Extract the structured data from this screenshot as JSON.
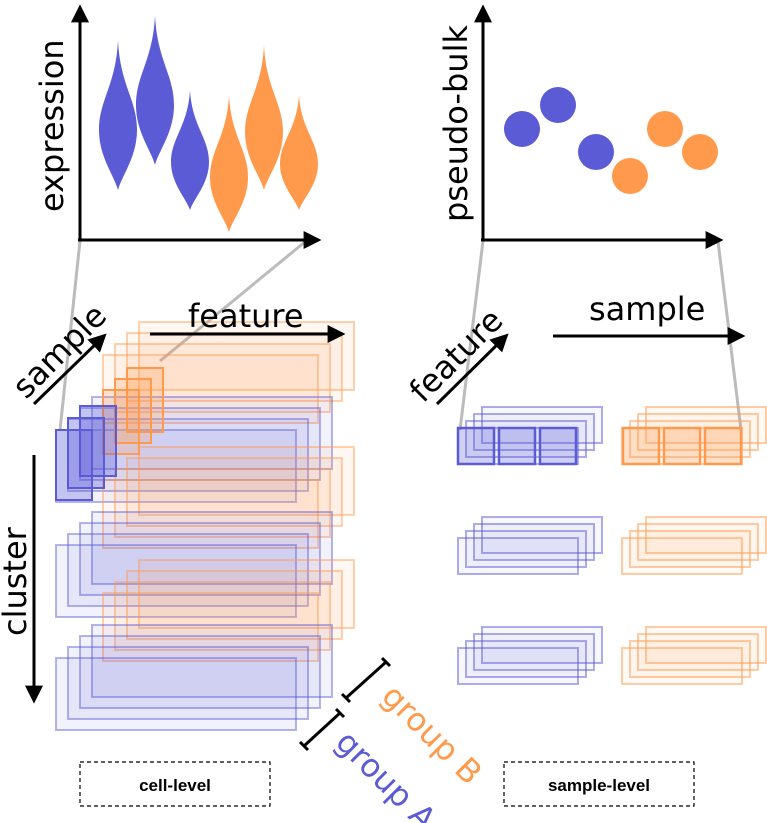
{
  "labels": {
    "expression": "expression",
    "pseudo_bulk": "pseudo-bulk",
    "sample_left": "sample",
    "feature_left": "feature",
    "feature_right": "feature",
    "sample_right": "sample",
    "cluster": "cluster",
    "group_a": "group A",
    "group_b": "group B",
    "cell_level": "cell-level",
    "sample_level": "sample-level"
  },
  "colors": {
    "group_a": "#5b5bd6",
    "group_b": "#ff9a4d",
    "group_a_light": "#b3b3ee",
    "group_b_light": "#ffcfa8",
    "axis": "#000000",
    "connector": "#bbbbbb"
  },
  "violins": [
    {
      "group": "A"
    },
    {
      "group": "A"
    },
    {
      "group": "A"
    },
    {
      "group": "B"
    },
    {
      "group": "B"
    },
    {
      "group": "B"
    }
  ],
  "dots": [
    {
      "group": "A"
    },
    {
      "group": "A"
    },
    {
      "group": "A"
    },
    {
      "group": "B"
    },
    {
      "group": "B"
    },
    {
      "group": "B"
    }
  ]
}
